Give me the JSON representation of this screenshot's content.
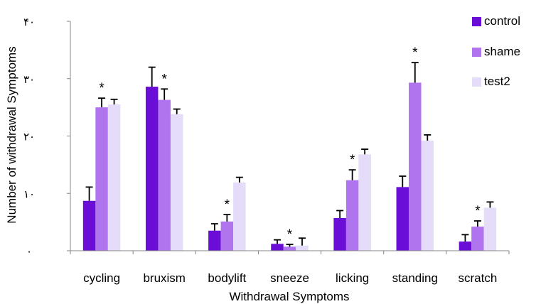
{
  "chart_data": {
    "type": "bar",
    "title": "",
    "xlabel": "Withdrawal Symptoms",
    "ylabel": "Number of withdrawal Symptoms",
    "ylim": [
      0,
      40
    ],
    "yticks": [
      0,
      10,
      20,
      30,
      40
    ],
    "ytick_labels": [
      "۰",
      "۱۰",
      "۲۰",
      "۳۰",
      "۴۰"
    ],
    "categories": [
      "cycling",
      "bruxism",
      "bodylift",
      "sneeze",
      "licking",
      "standing",
      "scratch"
    ],
    "series": [
      {
        "name": "control",
        "color": "#6a0dd6",
        "values": [
          8.7,
          28.6,
          3.5,
          1.2,
          5.7,
          11.1,
          1.6
        ],
        "errors": [
          2.4,
          3.4,
          1.2,
          0.7,
          1.3,
          1.9,
          1.2
        ]
      },
      {
        "name": "shame",
        "color": "#b074ee",
        "values": [
          25.0,
          26.3,
          5.1,
          0.7,
          12.3,
          29.3,
          4.2
        ],
        "errors": [
          1.6,
          1.9,
          1.2,
          0.4,
          1.8,
          3.5,
          1.0
        ]
      },
      {
        "name": "test2",
        "color": "#e4dcf8",
        "values": [
          25.5,
          23.8,
          11.9,
          0.9,
          16.8,
          19.2,
          7.5
        ],
        "errors": [
          0.9,
          0.9,
          0.9,
          1.3,
          0.9,
          1.0,
          1.0
        ]
      }
    ],
    "annotations": [
      {
        "category": "cycling",
        "series": "shame",
        "text": "*"
      },
      {
        "category": "bruxism",
        "series": "shame",
        "text": "*"
      },
      {
        "category": "bodylift",
        "series": "shame",
        "text": "*"
      },
      {
        "category": "sneeze",
        "series": "shame",
        "text": "*"
      },
      {
        "category": "licking",
        "series": "shame",
        "text": "*"
      },
      {
        "category": "standing",
        "series": "shame",
        "text": "*"
      },
      {
        "category": "scratch",
        "series": "shame",
        "text": "*"
      }
    ],
    "grid": false,
    "legend_position": "top-right"
  }
}
